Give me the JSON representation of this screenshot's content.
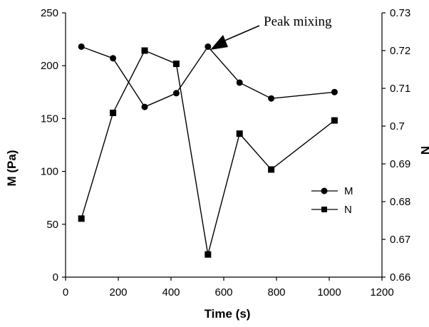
{
  "chart_data": {
    "type": "line",
    "title": "",
    "xlabel": "Time (s)",
    "ylabel_left": "M (Pa)",
    "ylabel_right": "N",
    "xlim": [
      0,
      1200
    ],
    "ylim_left": [
      0,
      250
    ],
    "ylim_right": [
      0.66,
      0.73
    ],
    "x_ticks": [
      "0",
      "200",
      "400",
      "600",
      "800",
      "1000",
      "1200"
    ],
    "y_left_ticks": [
      "0",
      "50",
      "100",
      "150",
      "200",
      "250"
    ],
    "y_right_ticks": [
      "0.66",
      "0.67",
      "0.68",
      "0.69",
      "0.7",
      "0.71",
      "0.72",
      "0.73"
    ],
    "grid": false,
    "legend_position": "right",
    "series": [
      {
        "name": "M",
        "axis": "left",
        "marker": "circle",
        "x": [
          60,
          180,
          300,
          420,
          540,
          660,
          780,
          1020
        ],
        "values": [
          218,
          207,
          161,
          174,
          218,
          184,
          169,
          175
        ]
      },
      {
        "name": "N",
        "axis": "right",
        "marker": "square",
        "x": [
          60,
          180,
          300,
          420,
          540,
          660,
          780,
          1020
        ],
        "values": [
          0.6755,
          0.7035,
          0.72,
          0.7165,
          0.666,
          0.698,
          0.6885,
          0.7015
        ]
      }
    ],
    "annotation": {
      "text": "Peak mixing",
      "points_to_x": 540
    }
  }
}
